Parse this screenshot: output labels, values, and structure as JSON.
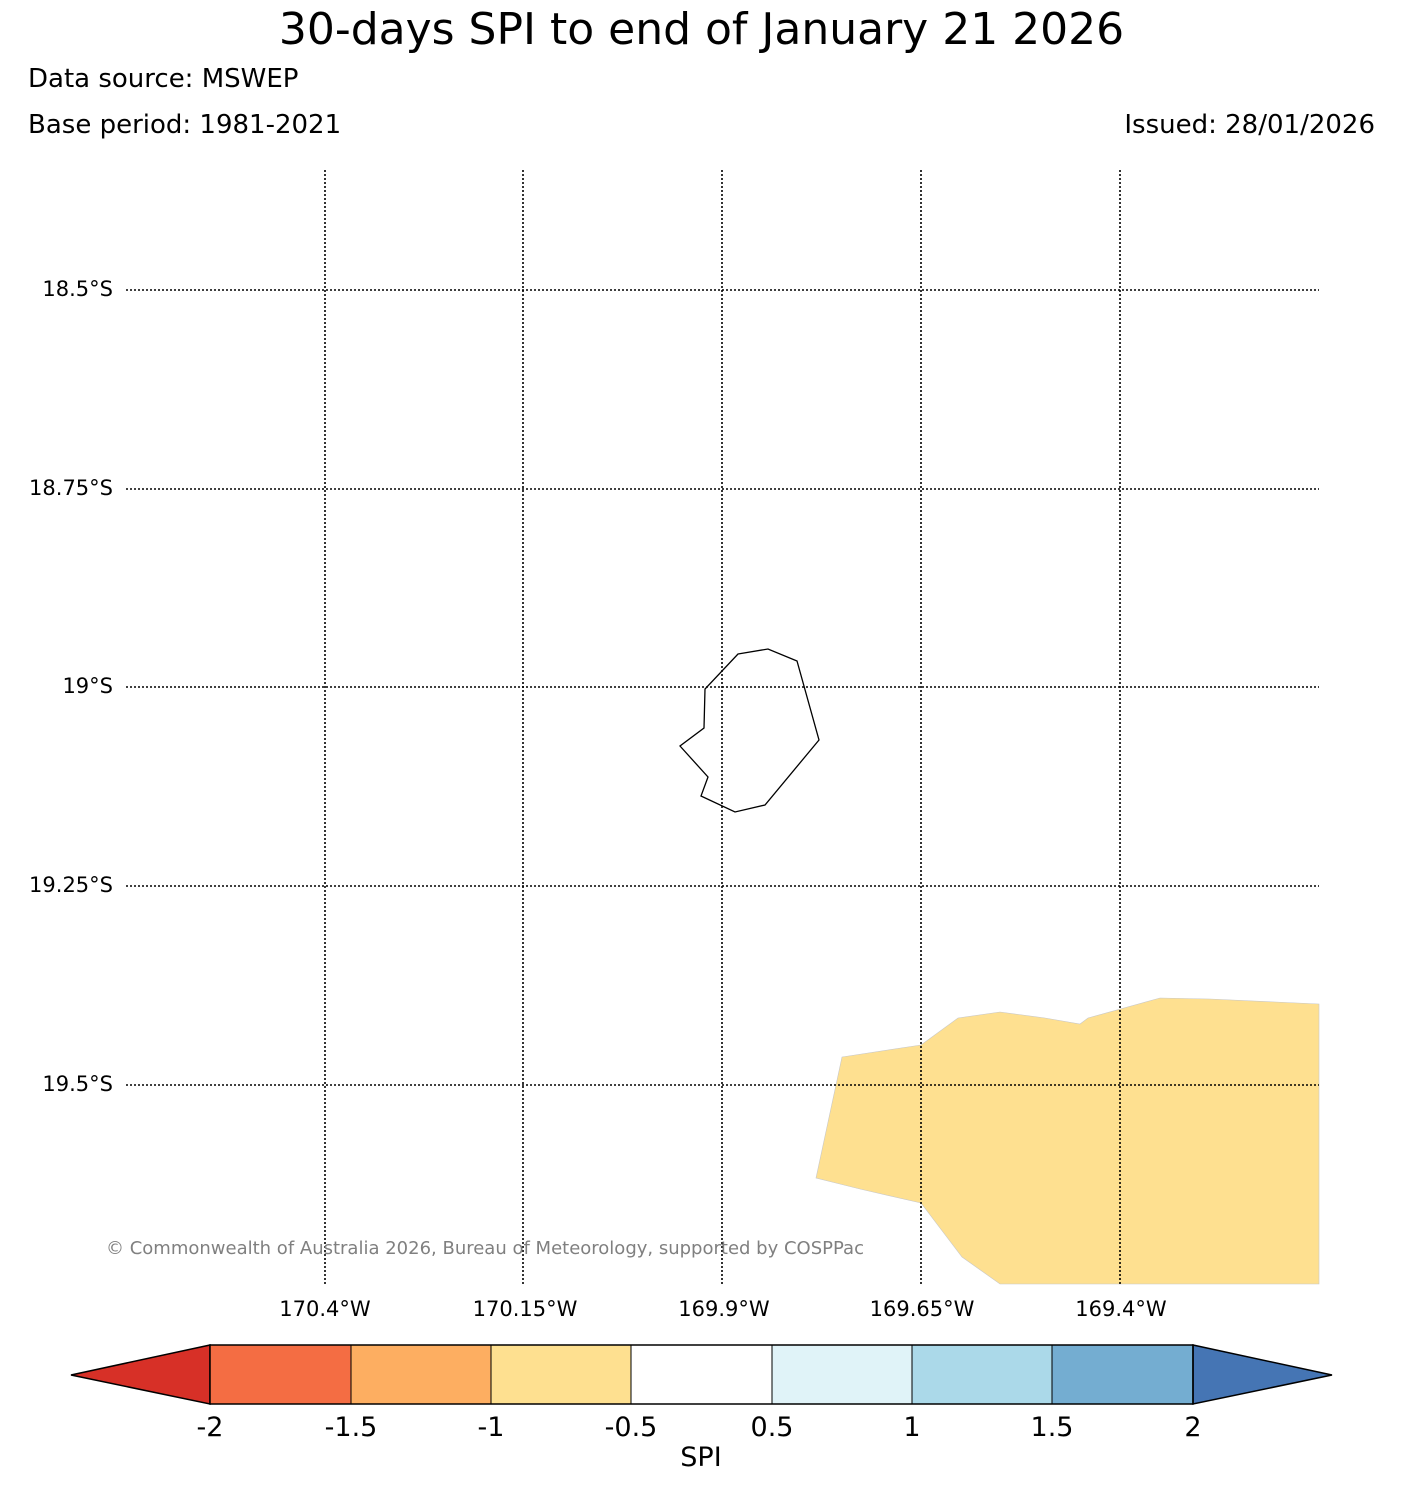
{
  "header": {
    "title": "30-days SPI to end of January 21 2026",
    "data_source": "Data source: MSWEP",
    "base_period": "Base period: 1981-2021",
    "issued": "Issued: 28/01/2026"
  },
  "map": {
    "lat_labels": [
      "18.5°S",
      "18.75°S",
      "19°S",
      "19.25°S",
      "19.5°S"
    ],
    "lon_labels": [
      "170.4°W",
      "170.15°W",
      "169.9°W",
      "169.65°W",
      "169.4°W"
    ],
    "island_outline_color": "#000000",
    "spi_region_color": "#fee090",
    "gridline_style": "dotted"
  },
  "colorbar": {
    "label": "SPI",
    "ticks": [
      "-2",
      "-1.5",
      "-1",
      "-0.5",
      "0.5",
      "1",
      "1.5",
      "2"
    ],
    "low_extend_color": "#d73027",
    "high_extend_color": "#4575b4",
    "bins": [
      {
        "from": -2,
        "to": -1.5,
        "color": "#f46d43"
      },
      {
        "from": -1.5,
        "to": -1,
        "color": "#fdae61"
      },
      {
        "from": -1,
        "to": -0.5,
        "color": "#fee090"
      },
      {
        "from": -0.5,
        "to": 0.5,
        "color": "#ffffff"
      },
      {
        "from": 0.5,
        "to": 1,
        "color": "#e0f3f8"
      },
      {
        "from": 1,
        "to": 1.5,
        "color": "#abd9e9"
      },
      {
        "from": 1.5,
        "to": 2,
        "color": "#74add1"
      }
    ]
  },
  "footer": {
    "copyright": "© Commonwealth of Australia 2026, Bureau of Meteorology, supported by COSPPac"
  }
}
